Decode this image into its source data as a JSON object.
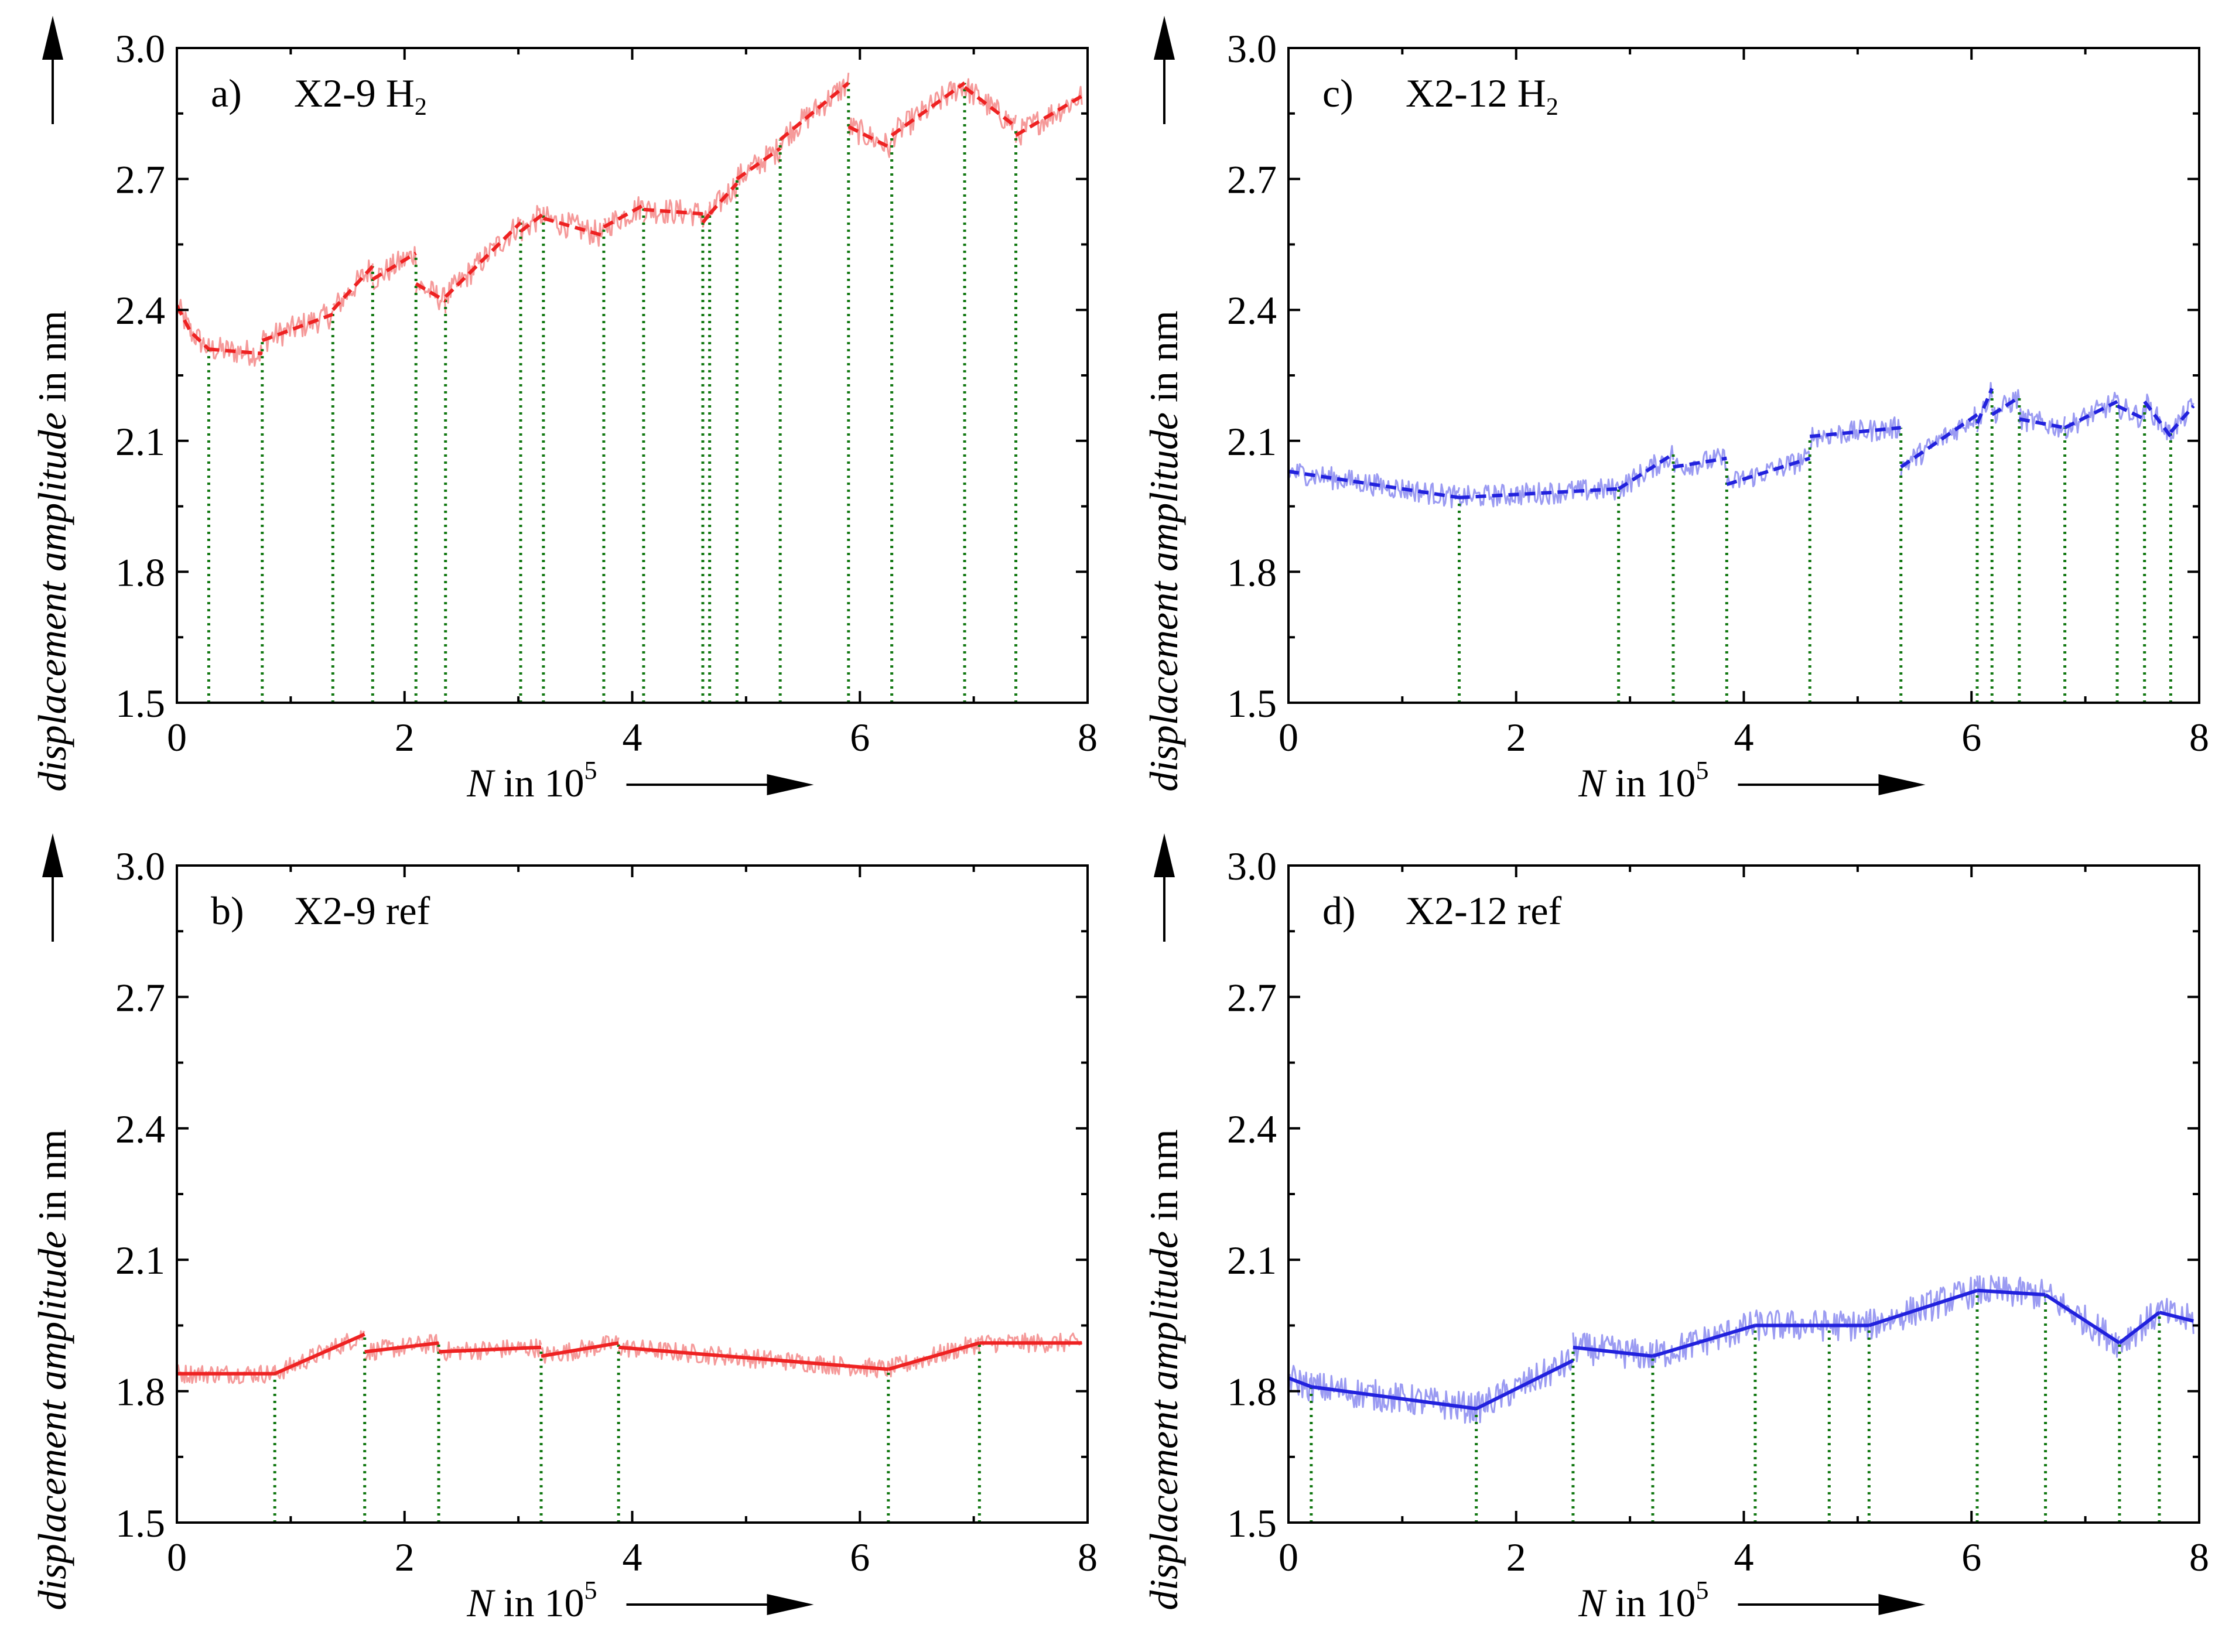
{
  "colors": {
    "red_line": "#ee2222",
    "red_band": "#f59a9a",
    "blue_line": "#2222dd",
    "blue_band": "#9b9bf2",
    "green_drop": "#117711",
    "axis": "#000000"
  },
  "chart_data": [
    {
      "type": "line",
      "id": "a",
      "label_letter": "a)",
      "label_main": "X2-9 H",
      "label_sub": "2",
      "color": "red",
      "style": "dashed",
      "xlim": [
        0,
        8
      ],
      "ylim": [
        1.5,
        3.0
      ],
      "xticks": [
        "0",
        "2",
        "4",
        "6",
        "8"
      ],
      "yticks": [
        "1.5",
        "1.8",
        "2.1",
        "2.4",
        "2.7",
        "3.0"
      ],
      "xlabel_italic": "N",
      "xlabel_rest": " in 10",
      "xlabel_sup": "5",
      "ylabel_italic": "displacement amplitude",
      "ylabel_rest": " in nm",
      "noise": 0.03,
      "segments": [
        [
          [
            0,
            2.41
          ],
          [
            0.12,
            2.35
          ],
          [
            0.28,
            2.31
          ]
        ],
        [
          [
            0.28,
            2.31
          ],
          [
            0.75,
            2.3
          ]
        ],
        [
          [
            0.75,
            2.33
          ],
          [
            1.37,
            2.39
          ]
        ],
        [
          [
            1.37,
            2.4
          ],
          [
            1.72,
            2.5
          ]
        ],
        [
          [
            1.72,
            2.47
          ],
          [
            2.1,
            2.53
          ]
        ],
        [
          [
            2.1,
            2.46
          ],
          [
            2.36,
            2.42
          ]
        ],
        [
          [
            2.36,
            2.43
          ],
          [
            3.02,
            2.6
          ]
        ],
        [
          [
            3.02,
            2.58
          ],
          [
            3.22,
            2.62
          ]
        ],
        [
          [
            3.22,
            2.61
          ],
          [
            3.75,
            2.57
          ]
        ],
        [
          [
            3.75,
            2.59
          ],
          [
            4.1,
            2.64
          ]
        ],
        [
          [
            4.1,
            2.63
          ],
          [
            4.62,
            2.62
          ]
        ],
        [
          [
            4.62,
            2.6
          ],
          [
            4.68,
            2.62
          ]
        ],
        [
          [
            4.68,
            2.62
          ],
          [
            4.92,
            2.69
          ]
        ],
        [
          [
            4.92,
            2.7
          ],
          [
            5.3,
            2.77
          ]
        ],
        [
          [
            5.3,
            2.79
          ],
          [
            5.9,
            2.92
          ]
        ],
        [
          [
            5.9,
            2.82
          ],
          [
            6.28,
            2.77
          ]
        ],
        [
          [
            6.28,
            2.8
          ],
          [
            6.92,
            2.92
          ]
        ],
        [
          [
            6.92,
            2.91
          ],
          [
            7.37,
            2.82
          ]
        ],
        [
          [
            7.37,
            2.8
          ],
          [
            7.95,
            2.89
          ]
        ]
      ],
      "drops": [
        0.28,
        0.75,
        1.37,
        1.72,
        2.1,
        2.36,
        3.02,
        3.22,
        3.75,
        4.1,
        4.62,
        4.68,
        4.92,
        5.3,
        5.9,
        6.28,
        6.92,
        7.37
      ]
    },
    {
      "type": "line",
      "id": "b",
      "label_letter": "b)",
      "label_main": "X2-9 ref",
      "label_sub": "",
      "color": "red",
      "style": "solid",
      "xlim": [
        0,
        8
      ],
      "ylim": [
        1.5,
        3.0
      ],
      "xticks": [
        "0",
        "2",
        "4",
        "6",
        "8"
      ],
      "yticks": [
        "1.5",
        "1.8",
        "2.1",
        "2.4",
        "2.7",
        "3.0"
      ],
      "xlabel_italic": "N",
      "xlabel_rest": " in 10",
      "xlabel_sup": "5",
      "ylabel_italic": "displacement amplitude",
      "ylabel_rest": " in nm",
      "noise": 0.022,
      "segments": [
        [
          [
            0,
            1.84
          ],
          [
            0.86,
            1.84
          ]
        ],
        [
          [
            0.86,
            1.84
          ],
          [
            1.65,
            1.93
          ]
        ],
        [
          [
            1.65,
            1.89
          ],
          [
            2.3,
            1.91
          ]
        ],
        [
          [
            2.3,
            1.89
          ],
          [
            3.2,
            1.9
          ]
        ],
        [
          [
            3.2,
            1.88
          ],
          [
            3.88,
            1.91
          ]
        ],
        [
          [
            3.88,
            1.9
          ],
          [
            6.25,
            1.85
          ]
        ],
        [
          [
            6.25,
            1.85
          ],
          [
            7.05,
            1.91
          ]
        ],
        [
          [
            7.05,
            1.91
          ],
          [
            7.95,
            1.91
          ]
        ]
      ],
      "drops": [
        0.86,
        1.65,
        2.3,
        3.2,
        3.88,
        6.25,
        7.05
      ]
    },
    {
      "type": "line",
      "id": "c",
      "label_letter": "c)",
      "label_main": "X2-12 H",
      "label_sub": "2",
      "color": "blue",
      "style": "dashed",
      "xlim": [
        0,
        8
      ],
      "ylim": [
        1.5,
        3.0
      ],
      "xticks": [
        "0",
        "2",
        "4",
        "6",
        "8"
      ],
      "yticks": [
        "1.5",
        "1.8",
        "2.1",
        "2.4",
        "2.7",
        "3.0"
      ],
      "xlabel_italic": "N",
      "xlabel_rest": " in 10",
      "xlabel_sup": "5",
      "ylabel_italic": "displacement amplitude",
      "ylabel_rest": " in nm",
      "noise": 0.026,
      "segments": [
        [
          [
            0,
            2.03
          ],
          [
            1.5,
            1.97
          ]
        ],
        [
          [
            1.5,
            1.97
          ],
          [
            2.9,
            1.99
          ]
        ],
        [
          [
            2.9,
            1.99
          ],
          [
            3.38,
            2.07
          ]
        ],
        [
          [
            3.38,
            2.04
          ],
          [
            3.85,
            2.06
          ]
        ],
        [
          [
            3.85,
            2.0
          ],
          [
            4.58,
            2.06
          ]
        ],
        [
          [
            4.58,
            2.11
          ],
          [
            5.38,
            2.13
          ]
        ],
        [
          [
            5.38,
            2.04
          ],
          [
            6.05,
            2.16
          ]
        ],
        [
          [
            6.05,
            2.14
          ],
          [
            6.18,
            2.22
          ]
        ],
        [
          [
            6.18,
            2.16
          ],
          [
            6.42,
            2.2
          ]
        ],
        [
          [
            6.42,
            2.15
          ],
          [
            6.82,
            2.13
          ]
        ],
        [
          [
            6.82,
            2.13
          ],
          [
            7.28,
            2.19
          ]
        ],
        [
          [
            7.28,
            2.18
          ],
          [
            7.52,
            2.15
          ]
        ],
        [
          [
            7.52,
            2.19
          ],
          [
            7.75,
            2.11
          ]
        ],
        [
          [
            7.75,
            2.12
          ],
          [
            7.95,
            2.18
          ]
        ]
      ],
      "drops": [
        1.5,
        2.9,
        3.38,
        3.85,
        4.58,
        5.38,
        6.05,
        6.18,
        6.42,
        6.82,
        7.28,
        7.52,
        7.75
      ]
    },
    {
      "type": "line",
      "id": "d",
      "label_letter": "d)",
      "label_main": "X2-12 ref",
      "label_sub": "",
      "color": "blue",
      "style": "solid",
      "xlim": [
        0,
        8
      ],
      "ylim": [
        1.5,
        3.0
      ],
      "xticks": [
        "0",
        "2",
        "4",
        "6",
        "8"
      ],
      "yticks": [
        "1.5",
        "1.8",
        "2.1",
        "2.4",
        "2.7",
        "3.0"
      ],
      "xlabel_italic": "N",
      "xlabel_rest": " in 10",
      "xlabel_sup": "5",
      "ylabel_italic": "displacement amplitude",
      "ylabel_rest": " in nm",
      "noise": 0.036,
      "segments": [
        [
          [
            0,
            1.83
          ],
          [
            0.2,
            1.81
          ]
        ],
        [
          [
            0.2,
            1.81
          ],
          [
            1.65,
            1.76
          ]
        ],
        [
          [
            1.65,
            1.76
          ],
          [
            2.5,
            1.87
          ]
        ],
        [
          [
            2.5,
            1.9
          ],
          [
            3.2,
            1.88
          ]
        ],
        [
          [
            3.2,
            1.88
          ],
          [
            4.1,
            1.95
          ]
        ],
        [
          [
            4.1,
            1.95
          ],
          [
            4.75,
            1.95
          ]
        ],
        [
          [
            4.75,
            1.95
          ],
          [
            5.1,
            1.95
          ]
        ],
        [
          [
            5.1,
            1.95
          ],
          [
            6.05,
            2.03
          ]
        ],
        [
          [
            6.05,
            2.03
          ],
          [
            6.65,
            2.02
          ]
        ],
        [
          [
            6.65,
            2.02
          ],
          [
            7.3,
            1.91
          ]
        ],
        [
          [
            7.3,
            1.91
          ],
          [
            7.65,
            1.98
          ]
        ],
        [
          [
            7.65,
            1.98
          ],
          [
            7.95,
            1.96
          ]
        ]
      ],
      "drops": [
        0.2,
        1.65,
        2.5,
        3.2,
        4.1,
        4.75,
        5.1,
        6.05,
        6.65,
        7.3,
        7.65
      ]
    }
  ]
}
